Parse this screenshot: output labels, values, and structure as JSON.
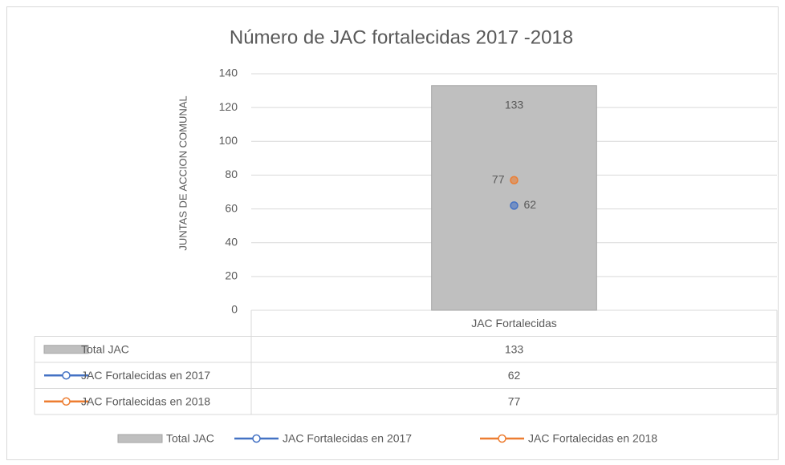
{
  "chart_data": {
    "type": "combo",
    "title": "Número de JAC fortalecidas 2017 -2018",
    "y_label": "JUNTAS DE ACCION COMUNAL",
    "categories": [
      "JAC Fortalecidas"
    ],
    "series": [
      {
        "name": "Total JAC",
        "type": "bar",
        "color": "#bfbfbf",
        "values": [
          133
        ]
      },
      {
        "name": "JAC Fortalecidas en 2017",
        "type": "line",
        "color": "#4472c4",
        "values": [
          62
        ]
      },
      {
        "name": "JAC Fortalecidas en 2018",
        "type": "line",
        "color": "#ed7d31",
        "values": [
          77
        ]
      }
    ],
    "ylim": [
      0,
      140
    ],
    "yticks": [
      0,
      20,
      40,
      60,
      80,
      100,
      120,
      140
    ],
    "grid": true,
    "data_table": true,
    "legend": "bottom"
  }
}
